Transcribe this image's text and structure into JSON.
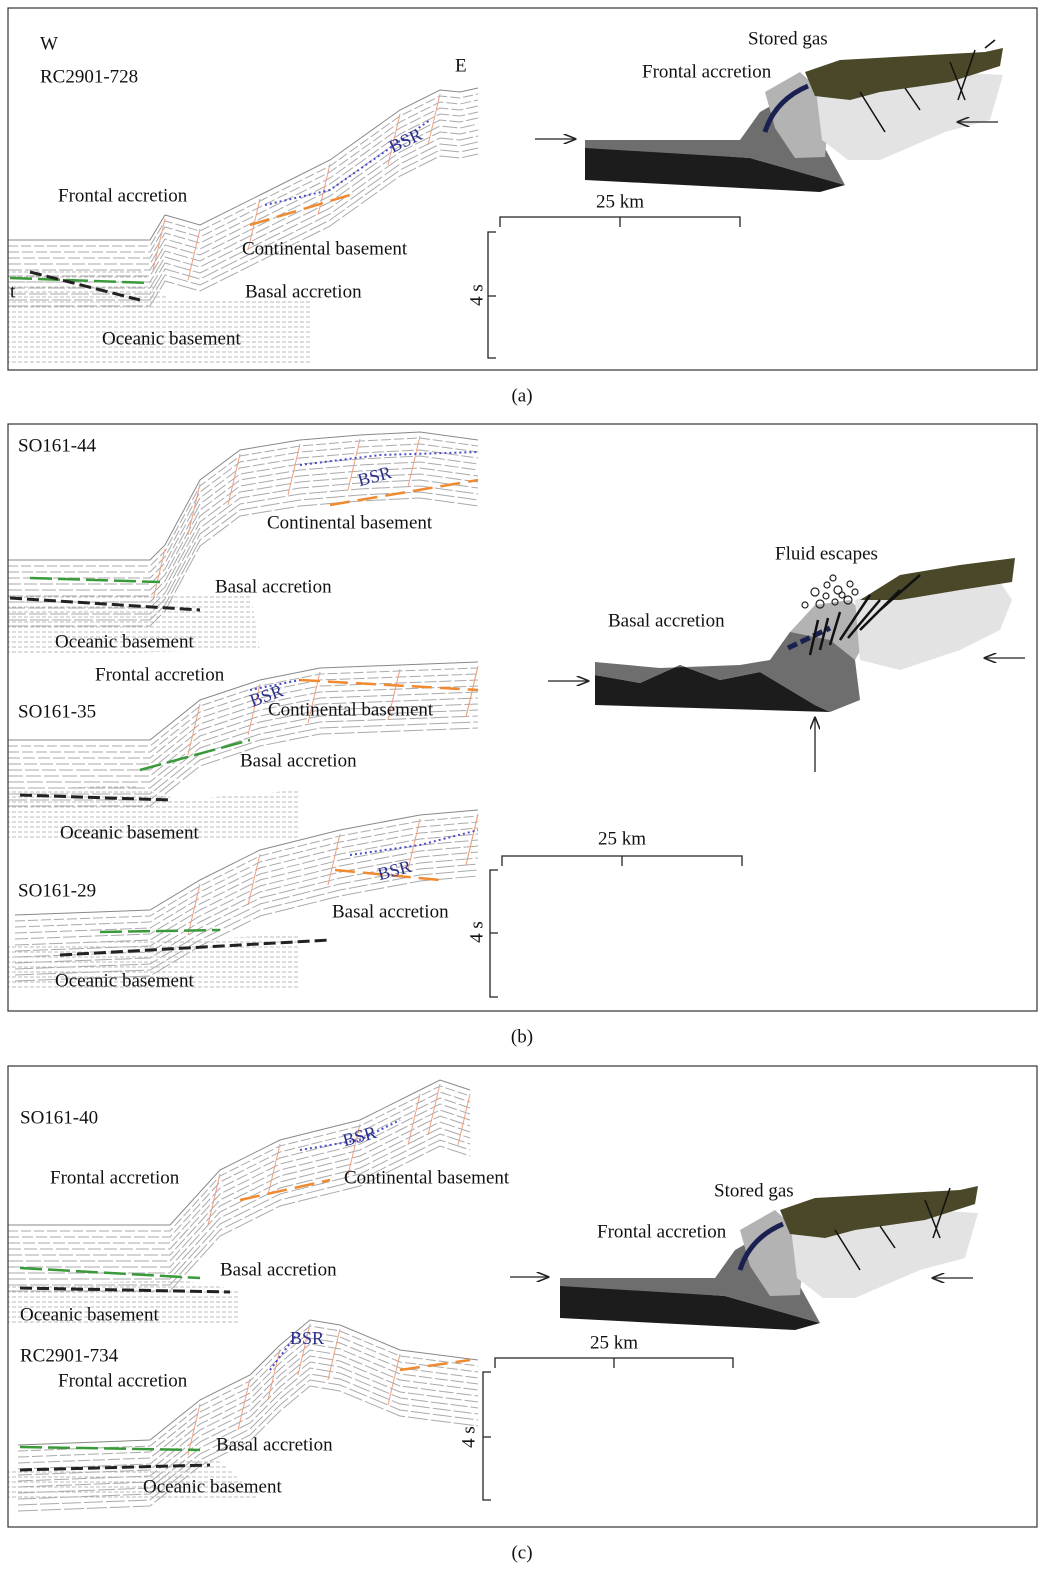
{
  "panels": [
    {
      "label": "(a)",
      "orientation": {
        "west": "W",
        "east": "E"
      },
      "edge_mark": "t",
      "profiles": [
        {
          "name": "RC2901-728",
          "labels": [
            "BSR",
            "Frontal accretion",
            "Continental basement",
            "Basal accretion",
            "Oceanic basement"
          ]
        }
      ],
      "model": {
        "labels": [
          "Stored gas",
          "Frontal accretion"
        ]
      },
      "scale": {
        "distance": "25 km",
        "time": "4 s"
      }
    },
    {
      "label": "(b)",
      "profiles": [
        {
          "name": "SO161-44",
          "labels": [
            "BSR",
            "Continental basement",
            "Basal accretion",
            "Oceanic basement"
          ]
        },
        {
          "name": "SO161-35",
          "labels": [
            "Frontal accretion",
            "BSR",
            "Continental basement",
            "Basal accretion",
            "Oceanic basement"
          ]
        },
        {
          "name": "SO161-29",
          "labels": [
            "BSR",
            "Basal accretion",
            "Oceanic basement"
          ]
        }
      ],
      "model": {
        "labels": [
          "Fluid escapes",
          "Basal accretion"
        ]
      },
      "scale": {
        "distance": "25 km",
        "time": "4 s"
      }
    },
    {
      "label": "(c)",
      "profiles": [
        {
          "name": "SO161-40",
          "labels": [
            "Frontal accretion",
            "BSR",
            "Continental basement",
            "Basal accretion",
            "Oceanic basement"
          ]
        },
        {
          "name": "RC2901-734",
          "labels": [
            "BSR",
            "Frontal accretion",
            "Basal accretion",
            "Oceanic basement"
          ]
        }
      ],
      "model": {
        "labels": [
          "Stored gas",
          "Frontal accretion"
        ]
      },
      "scale": {
        "distance": "25 km",
        "time": "4 s"
      }
    }
  ]
}
